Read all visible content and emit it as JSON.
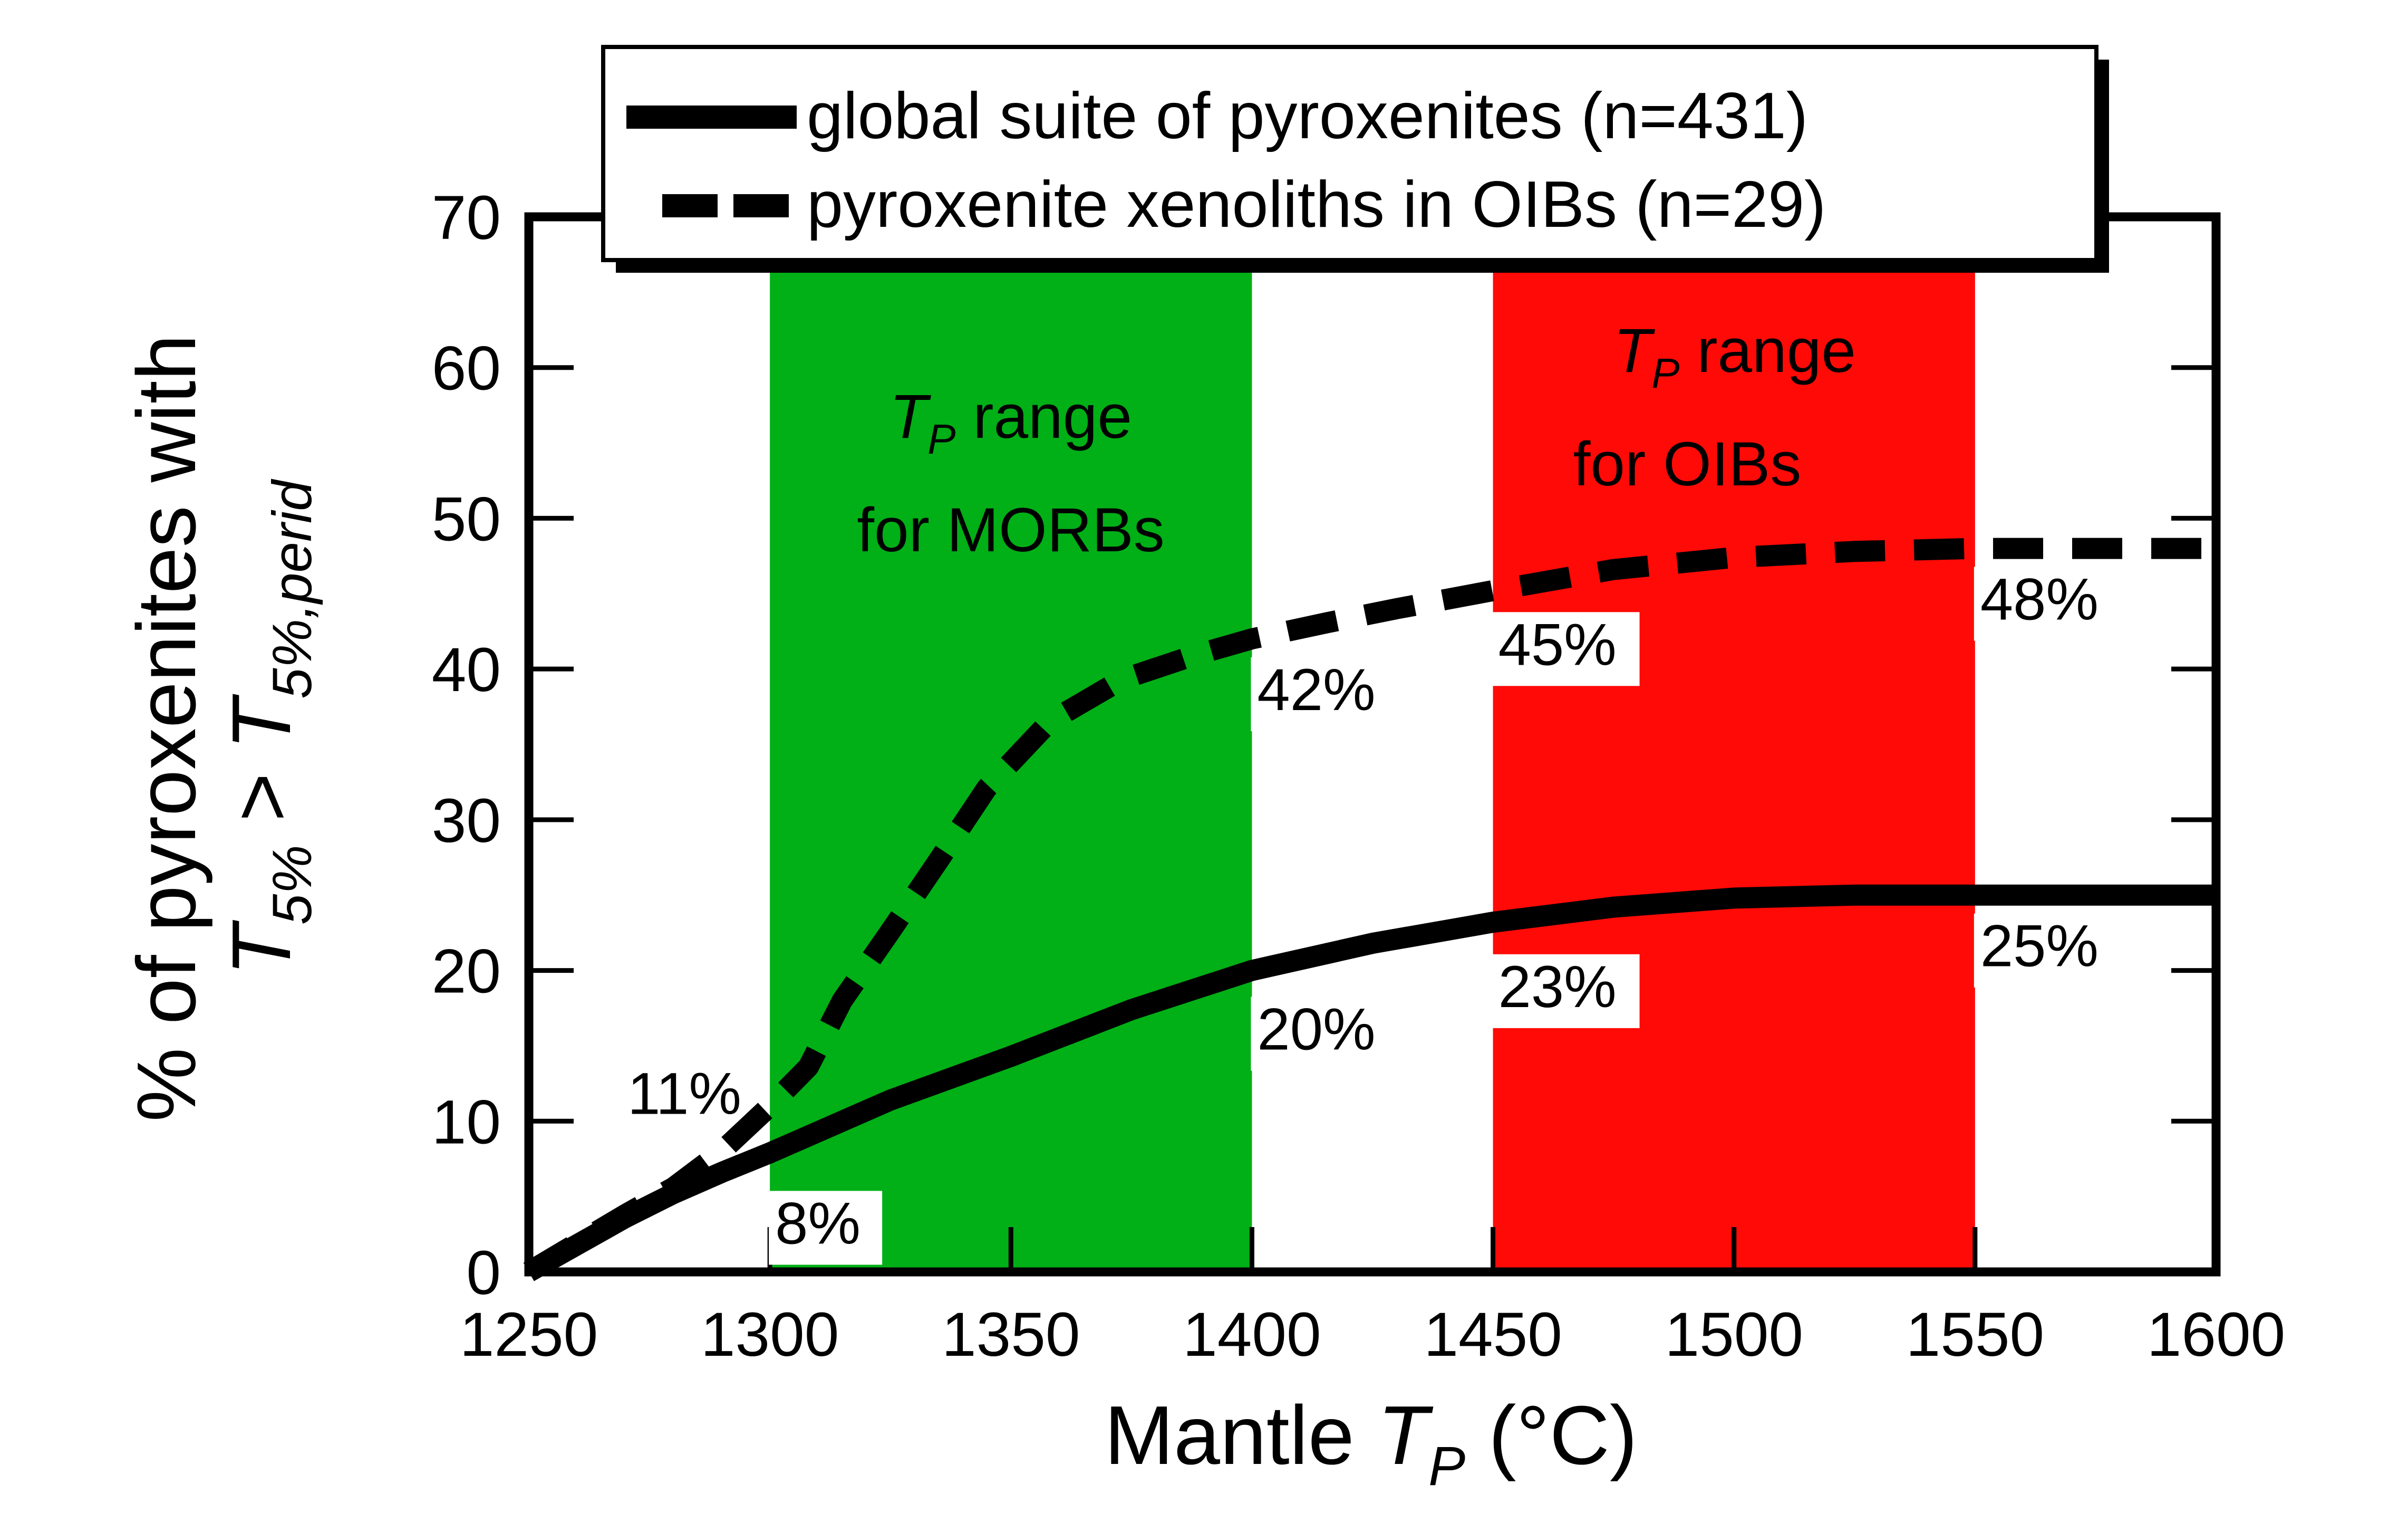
{
  "chart_data": {
    "type": "line",
    "title": "",
    "xlabel": {
      "prefix": "Mantle ",
      "symbol": "T",
      "subscript": "P",
      "suffix": " (°C)"
    },
    "ylabel": {
      "line1": "% of pyroxenites with",
      "line2": {
        "symbol_a": "T",
        "sub_a": "5%",
        "relation": " > ",
        "symbol_b": "T",
        "sub_b": "5%,perid"
      }
    },
    "xlim": [
      1250,
      1600
    ],
    "ylim": [
      0,
      70
    ],
    "xticks": [
      1250,
      1300,
      1350,
      1400,
      1450,
      1500,
      1550,
      1600
    ],
    "xtick_labels": [
      "1250",
      "1300",
      "1350",
      "1400",
      "1450",
      "1500",
      "1550",
      "1600"
    ],
    "yticks": [
      0,
      10,
      20,
      30,
      40,
      50,
      60,
      70
    ],
    "ytick_labels": [
      "0",
      "10",
      "20",
      "30",
      "40",
      "50",
      "60",
      "70"
    ],
    "grid": false,
    "legend_position": "top-center",
    "series": [
      {
        "name": "global suite of pyroxenites (n=431)",
        "style": "solid",
        "color": "#000000",
        "x": [
          1250,
          1260,
          1270,
          1280,
          1290,
          1300,
          1310,
          1325,
          1350,
          1375,
          1400,
          1425,
          1450,
          1475,
          1500,
          1525,
          1550,
          1575,
          1600
        ],
        "y": [
          0,
          1.8,
          3.6,
          5.2,
          6.6,
          7.9,
          9.3,
          11.4,
          14.3,
          17.4,
          20.0,
          21.8,
          23.2,
          24.2,
          24.8,
          25.0,
          25.0,
          25.0,
          25.0
        ]
      },
      {
        "name": "pyroxenite xenoliths in OIBs (n=29)",
        "style": "dashed",
        "color": "#000000",
        "x": [
          1250,
          1260,
          1270,
          1280,
          1290,
          1300,
          1308,
          1315,
          1325,
          1335,
          1345,
          1358,
          1373,
          1388,
          1400,
          1416,
          1430,
          1450,
          1475,
          1500,
          1525,
          1550,
          1575,
          1600
        ],
        "y": [
          0,
          1.9,
          3.8,
          5.6,
          8.0,
          11.0,
          13.6,
          18.0,
          22.6,
          27.3,
          32.1,
          36.5,
          39.3,
          40.9,
          42.0,
          43.1,
          44.0,
          45.2,
          46.6,
          47.4,
          47.8,
          48.0,
          48.0,
          48.0
        ]
      }
    ],
    "shaded_regions": [
      {
        "name": "MORB",
        "x_range": [
          1300,
          1400
        ],
        "color": "#00B016",
        "label_symbol": "T",
        "label_sub": "P",
        "label_rest": " range",
        "label_line2": "for MORBs"
      },
      {
        "name": "OIB",
        "x_range": [
          1450,
          1550
        ],
        "color": "#FF0A07",
        "label_symbol": "T",
        "label_sub": "P",
        "label_rest": " range",
        "label_line2": "for OIBs"
      }
    ],
    "annotations": [
      {
        "text": "8%",
        "x": 1300,
        "y": 8,
        "series": "global suite of pyroxenites (n=431)"
      },
      {
        "text": "20%",
        "x": 1400,
        "y": 20,
        "series": "global suite of pyroxenites (n=431)"
      },
      {
        "text": "23%",
        "x": 1450,
        "y": 23,
        "series": "global suite of pyroxenites (n=431)"
      },
      {
        "text": "25%",
        "x": 1550,
        "y": 25,
        "series": "global suite of pyroxenites (n=431)"
      },
      {
        "text": "11%",
        "x": 1300,
        "y": 11,
        "series": "pyroxenite xenoliths in OIBs (n=29)"
      },
      {
        "text": "42%",
        "x": 1400,
        "y": 42,
        "series": "pyroxenite xenoliths in OIBs (n=29)"
      },
      {
        "text": "45%",
        "x": 1450,
        "y": 45,
        "series": "pyroxenite xenoliths in OIBs (n=29)"
      },
      {
        "text": "48%",
        "x": 1550,
        "y": 48,
        "series": "pyroxenite xenoliths in OIBs (n=29)"
      }
    ]
  }
}
